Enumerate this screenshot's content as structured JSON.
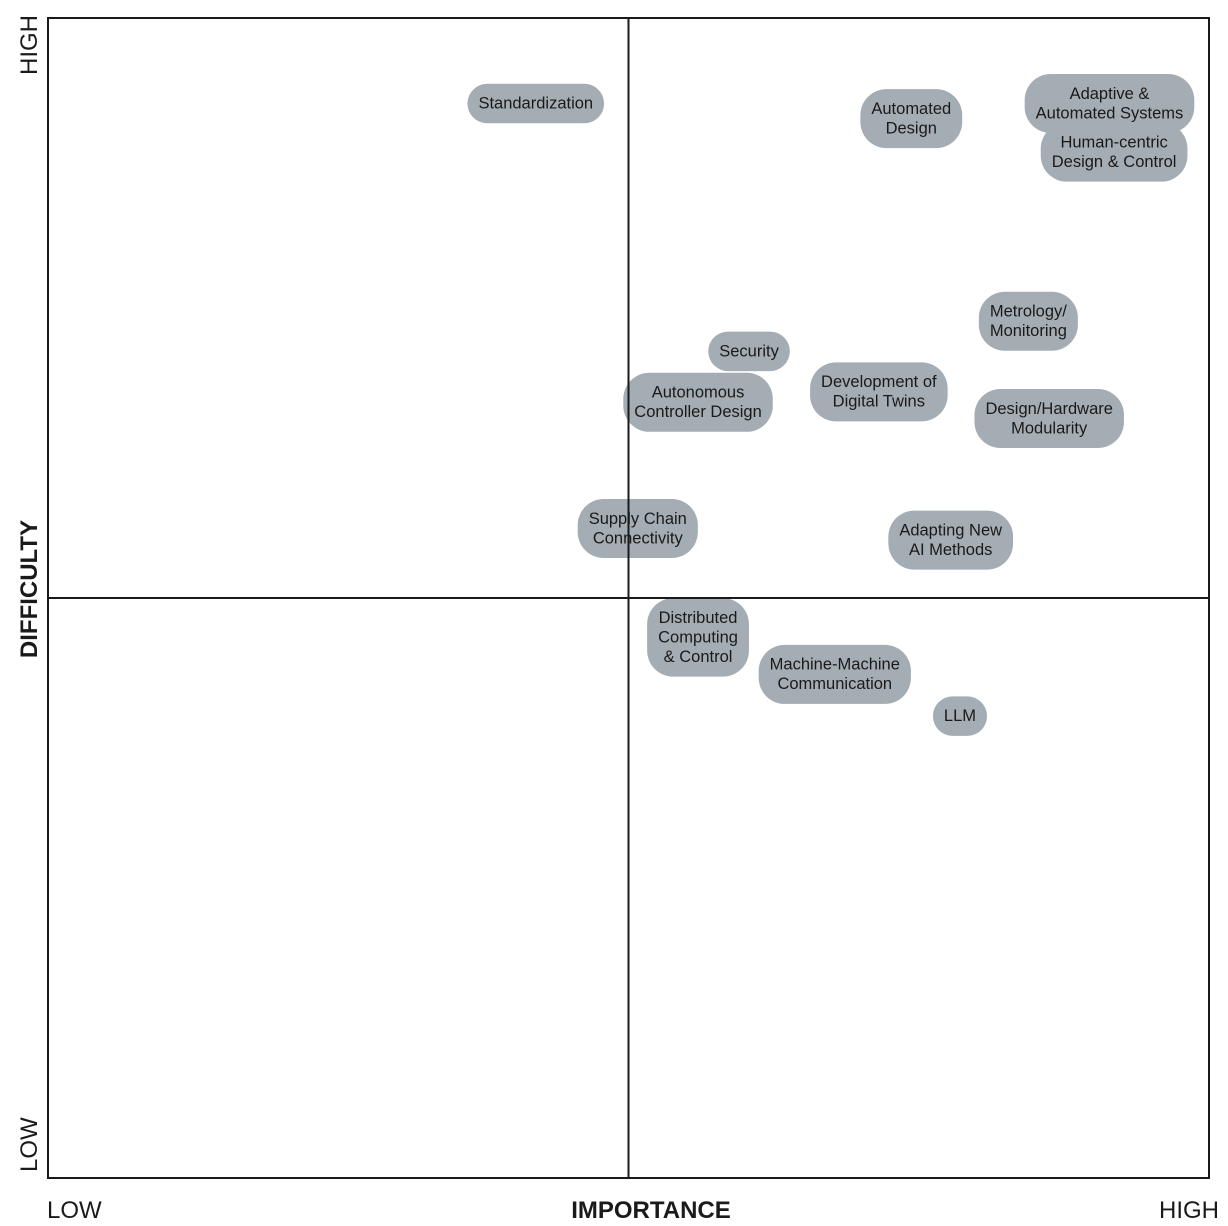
{
  "chart_data": {
    "type": "scatter",
    "title": "",
    "xlabel": "IMPORTANCE",
    "ylabel": "DIFFICULTY",
    "x_low_label": "LOW",
    "x_high_label": "HIGH",
    "y_low_label": "LOW",
    "y_high_label": "HIGH",
    "xlim": [
      0,
      10
    ],
    "ylim": [
      0,
      10
    ],
    "quadrant_divider": {
      "x": 5,
      "y": 5
    },
    "grid": false,
    "colors": {
      "pill": "#a4adb3",
      "frame": "#1a1a1a"
    },
    "points": [
      {
        "lines": [
          "Standardization"
        ],
        "x": 4.2,
        "y": 9.27
      },
      {
        "lines": [
          "Automated",
          "Design"
        ],
        "x": 7.44,
        "y": 9.14
      },
      {
        "lines": [
          "Adaptive &",
          "Automated Systems"
        ],
        "x": 9.15,
        "y": 9.27
      },
      {
        "lines": [
          "Human-centric",
          "Design & Control"
        ],
        "x": 9.19,
        "y": 8.85
      },
      {
        "lines": [
          "Metrology/",
          "Monitoring"
        ],
        "x": 8.45,
        "y": 7.39
      },
      {
        "lines": [
          "Security"
        ],
        "x": 6.04,
        "y": 7.13
      },
      {
        "lines": [
          "Development of",
          "Digital Twins"
        ],
        "x": 7.16,
        "y": 6.78
      },
      {
        "lines": [
          "Autonomous",
          "Controller Design"
        ],
        "x": 5.6,
        "y": 6.69
      },
      {
        "lines": [
          "Design/Hardware",
          "Modularity"
        ],
        "x": 8.63,
        "y": 6.55
      },
      {
        "lines": [
          "Supply Chain",
          "Connectivity"
        ],
        "x": 5.08,
        "y": 5.6
      },
      {
        "lines": [
          "Adapting New",
          "AI Methods"
        ],
        "x": 7.78,
        "y": 5.5
      },
      {
        "lines": [
          "Distributed",
          "Computing",
          "& Control"
        ],
        "x": 5.6,
        "y": 4.66
      },
      {
        "lines": [
          "Machine-Machine",
          "Communication"
        ],
        "x": 6.78,
        "y": 4.34
      },
      {
        "lines": [
          "LLM"
        ],
        "x": 7.86,
        "y": 3.98
      }
    ]
  }
}
